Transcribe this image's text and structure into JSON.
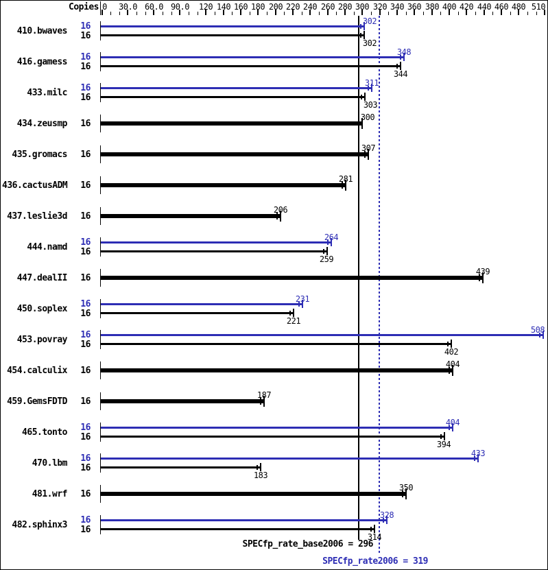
{
  "chart_data": {
    "type": "bar",
    "orientation": "horizontal",
    "copies_header": "Copies",
    "xlim": [
      0,
      510
    ],
    "x_minor_tick_step": 10,
    "x_major_ticks": [
      {
        "value": 0,
        "label": "0"
      },
      {
        "value": 30,
        "label": "30.0"
      },
      {
        "value": 60,
        "label": "60.0"
      },
      {
        "value": 90,
        "label": "90.0"
      },
      {
        "value": 120,
        "label": "120"
      },
      {
        "value": 140,
        "label": "140"
      },
      {
        "value": 160,
        "label": "160"
      },
      {
        "value": 180,
        "label": "180"
      },
      {
        "value": 200,
        "label": "200"
      },
      {
        "value": 220,
        "label": "220"
      },
      {
        "value": 240,
        "label": "240"
      },
      {
        "value": 260,
        "label": "260"
      },
      {
        "value": 280,
        "label": "280"
      },
      {
        "value": 300,
        "label": "300"
      },
      {
        "value": 320,
        "label": "320"
      },
      {
        "value": 340,
        "label": "340"
      },
      {
        "value": 360,
        "label": "360"
      },
      {
        "value": 380,
        "label": "380"
      },
      {
        "value": 400,
        "label": "400"
      },
      {
        "value": 420,
        "label": "420"
      },
      {
        "value": 440,
        "label": "440"
      },
      {
        "value": 460,
        "label": "460"
      },
      {
        "value": 480,
        "label": "480"
      },
      {
        "value": 510,
        "label": "510"
      }
    ],
    "reference_lines": [
      {
        "name": "base",
        "label": "SPECfp_rate_base2006",
        "value": 296,
        "style": "solid",
        "color": "#000000"
      },
      {
        "name": "peak",
        "label": "SPECfp_rate2006",
        "value": 319,
        "style": "dotted",
        "color": "#2d2db4"
      }
    ],
    "rows": [
      {
        "name": "410.bwaves",
        "bars": [
          {
            "kind": "peak",
            "copies": 16,
            "value": 302
          },
          {
            "kind": "base",
            "copies": 16,
            "value": 302
          }
        ]
      },
      {
        "name": "416.gamess",
        "bars": [
          {
            "kind": "peak",
            "copies": 16,
            "value": 348
          },
          {
            "kind": "base",
            "copies": 16,
            "value": 344
          }
        ]
      },
      {
        "name": "433.milc",
        "bars": [
          {
            "kind": "peak",
            "copies": 16,
            "value": 311
          },
          {
            "kind": "base",
            "copies": 16,
            "value": 303
          }
        ]
      },
      {
        "name": "434.zeusmp",
        "bars": [
          {
            "kind": "single",
            "copies": 16,
            "value": 300
          }
        ]
      },
      {
        "name": "435.gromacs",
        "bars": [
          {
            "kind": "single",
            "copies": 16,
            "value": 307
          }
        ]
      },
      {
        "name": "436.cactusADM",
        "bars": [
          {
            "kind": "single",
            "copies": 16,
            "value": 281
          }
        ]
      },
      {
        "name": "437.leslie3d",
        "bars": [
          {
            "kind": "single",
            "copies": 16,
            "value": 206
          }
        ]
      },
      {
        "name": "444.namd",
        "bars": [
          {
            "kind": "peak",
            "copies": 16,
            "value": 264
          },
          {
            "kind": "base",
            "copies": 16,
            "value": 259
          }
        ]
      },
      {
        "name": "447.dealII",
        "bars": [
          {
            "kind": "single",
            "copies": 16,
            "value": 439
          }
        ]
      },
      {
        "name": "450.soplex",
        "bars": [
          {
            "kind": "peak",
            "copies": 16,
            "value": 231
          },
          {
            "kind": "base",
            "copies": 16,
            "value": 221
          }
        ]
      },
      {
        "name": "453.povray",
        "bars": [
          {
            "kind": "peak",
            "copies": 16,
            "value": 508
          },
          {
            "kind": "base",
            "copies": 16,
            "value": 402
          }
        ]
      },
      {
        "name": "454.calculix",
        "bars": [
          {
            "kind": "single",
            "copies": 16,
            "value": 404
          }
        ]
      },
      {
        "name": "459.GemsFDTD",
        "bars": [
          {
            "kind": "single",
            "copies": 16,
            "value": 187
          }
        ]
      },
      {
        "name": "465.tonto",
        "bars": [
          {
            "kind": "peak",
            "copies": 16,
            "value": 404
          },
          {
            "kind": "base",
            "copies": 16,
            "value": 394
          }
        ]
      },
      {
        "name": "470.lbm",
        "bars": [
          {
            "kind": "peak",
            "copies": 16,
            "value": 433
          },
          {
            "kind": "base",
            "copies": 16,
            "value": 183
          }
        ]
      },
      {
        "name": "481.wrf",
        "bars": [
          {
            "kind": "single",
            "copies": 16,
            "value": 350
          }
        ]
      },
      {
        "name": "482.sphinx3",
        "bars": [
          {
            "kind": "peak",
            "copies": 16,
            "value": 328
          },
          {
            "kind": "base",
            "copies": 16,
            "value": 314
          }
        ]
      }
    ]
  },
  "footer": {
    "base_text": "SPECfp_rate_base2006 = 296",
    "peak_text": "SPECfp_rate2006 = 319"
  },
  "colors": {
    "peak_blue": "#2d2db4",
    "base_black": "#000000"
  }
}
